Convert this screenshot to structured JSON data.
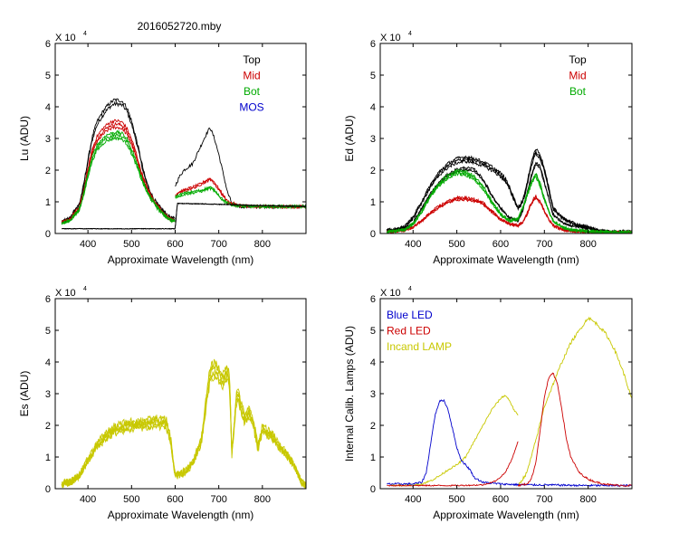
{
  "title": "2016052720.mby",
  "chart_data": [
    {
      "type": "line",
      "id": "lu",
      "ylabel": "Lu (ADU)",
      "xlabel": "Approximate Wavelength (nm)",
      "exponent_label": "X 10",
      "exponent_sup": "4",
      "xlim": [
        325,
        900
      ],
      "ylim": [
        0,
        6
      ],
      "xticks": [
        400,
        500,
        600,
        700,
        800
      ],
      "yticks": [
        0,
        1,
        2,
        3,
        4,
        5,
        6
      ],
      "legend_position": "top-right",
      "legend": [
        {
          "label": "Top",
          "color": "#000000"
        },
        {
          "label": "Mid",
          "color": "#cc0000"
        },
        {
          "label": "Bot",
          "color": "#00aa00"
        },
        {
          "label": "MOS",
          "color": "#0000cc"
        }
      ],
      "series": [
        {
          "name": "Top",
          "color": "#000000",
          "noise": 0.06,
          "copies": 2,
          "x": [
            340,
            360,
            370,
            380,
            390,
            400,
            410,
            420,
            430,
            440,
            450,
            460,
            470,
            480,
            490,
            500,
            510,
            520,
            530,
            540,
            550,
            560,
            570,
            580,
            590,
            600
          ],
          "y": [
            0.35,
            0.5,
            0.75,
            0.9,
            1.5,
            2.3,
            3.0,
            3.45,
            3.7,
            3.9,
            4.05,
            4.15,
            4.15,
            4.1,
            3.9,
            3.5,
            3.0,
            2.4,
            1.8,
            1.4,
            1.1,
            0.9,
            0.75,
            0.6,
            0.5,
            0.45
          ]
        },
        {
          "name": "Top (red region)",
          "color": "#000000",
          "noise": 0.05,
          "copies": 1,
          "x": [
            600,
            610,
            620,
            630,
            640,
            650,
            660,
            670,
            680,
            690,
            700,
            710,
            720,
            730,
            740,
            750,
            800,
            850,
            900
          ],
          "y": [
            1.5,
            1.8,
            2.0,
            2.1,
            2.2,
            2.5,
            2.8,
            3.1,
            3.35,
            3.0,
            2.5,
            1.9,
            1.3,
            0.95,
            0.88,
            0.85,
            0.85,
            0.85,
            0.85
          ]
        },
        {
          "name": "Mid",
          "color": "#cc0000",
          "noise": 0.05,
          "copies": 3,
          "x": [
            340,
            360,
            370,
            380,
            390,
            400,
            410,
            420,
            430,
            440,
            450,
            460,
            470,
            480,
            490,
            500,
            510,
            520,
            530,
            540,
            550,
            560,
            570,
            580,
            590,
            600
          ],
          "y": [
            0.33,
            0.45,
            0.65,
            0.8,
            1.3,
            2.0,
            2.6,
            2.95,
            3.15,
            3.3,
            3.4,
            3.45,
            3.45,
            3.4,
            3.2,
            2.9,
            2.5,
            2.0,
            1.6,
            1.3,
            1.05,
            0.85,
            0.7,
            0.55,
            0.45,
            0.4
          ]
        },
        {
          "name": "Mid (red region)",
          "color": "#cc0000",
          "noise": 0.04,
          "copies": 2,
          "x": [
            600,
            610,
            620,
            640,
            660,
            670,
            680,
            690,
            700,
            710,
            720,
            740,
            760,
            800,
            850,
            900
          ],
          "y": [
            1.2,
            1.3,
            1.35,
            1.45,
            1.55,
            1.65,
            1.72,
            1.6,
            1.4,
            1.2,
            1.0,
            0.9,
            0.87,
            0.85,
            0.85,
            0.85
          ]
        },
        {
          "name": "Bot",
          "color": "#00aa00",
          "noise": 0.05,
          "copies": 3,
          "x": [
            340,
            360,
            370,
            380,
            390,
            400,
            410,
            420,
            430,
            440,
            450,
            460,
            470,
            480,
            490,
            500,
            510,
            520,
            530,
            540,
            550,
            560,
            570,
            580,
            590,
            600
          ],
          "y": [
            0.32,
            0.42,
            0.6,
            0.75,
            1.2,
            1.85,
            2.35,
            2.7,
            2.85,
            3.0,
            3.05,
            3.1,
            3.1,
            3.05,
            2.9,
            2.6,
            2.25,
            1.85,
            1.5,
            1.2,
            1.0,
            0.8,
            0.65,
            0.52,
            0.43,
            0.38
          ]
        },
        {
          "name": "Bot (red region)",
          "color": "#00aa00",
          "noise": 0.04,
          "copies": 2,
          "x": [
            600,
            610,
            620,
            640,
            660,
            670,
            680,
            690,
            700,
            710,
            720,
            740,
            760,
            800,
            850,
            900
          ],
          "y": [
            1.15,
            1.2,
            1.25,
            1.3,
            1.35,
            1.4,
            1.45,
            1.35,
            1.2,
            1.05,
            0.95,
            0.88,
            0.86,
            0.85,
            0.85,
            0.85
          ]
        },
        {
          "name": "Baseline",
          "color": "#000000",
          "noise": 0.01,
          "copies": 2,
          "x": [
            340,
            600,
            605,
            700,
            800,
            900
          ],
          "y": [
            0.15,
            0.15,
            0.95,
            0.92,
            0.88,
            0.85
          ]
        }
      ]
    },
    {
      "type": "line",
      "id": "ed",
      "ylabel": "Ed  (ADU)",
      "xlabel": "Approximate Wavelength (nm)",
      "exponent_label": "X 10",
      "exponent_sup": "4",
      "xlim": [
        325,
        900
      ],
      "ylim": [
        0,
        6
      ],
      "xticks": [
        400,
        500,
        600,
        700,
        800
      ],
      "yticks": [
        0,
        1,
        2,
        3,
        4,
        5,
        6
      ],
      "legend_position": "top-right",
      "legend": [
        {
          "label": "Top",
          "color": "#000000"
        },
        {
          "label": "Mid",
          "color": "#cc0000"
        },
        {
          "label": "Bot",
          "color": "#00aa00"
        }
      ],
      "series": [
        {
          "name": "Top",
          "color": "#000000",
          "noise": 0.05,
          "copies": 3,
          "x": [
            340,
            360,
            380,
            400,
            420,
            440,
            460,
            480,
            500,
            520,
            540,
            560,
            580,
            600,
            610,
            620,
            630,
            640,
            650,
            660,
            670,
            680,
            690,
            700,
            710,
            720,
            740,
            760,
            780,
            800,
            820,
            850,
            900
          ],
          "y": [
            0.1,
            0.12,
            0.2,
            0.5,
            1.0,
            1.5,
            1.9,
            2.15,
            2.3,
            2.35,
            2.3,
            2.2,
            2.05,
            1.85,
            1.7,
            1.45,
            1.1,
            0.8,
            1.0,
            1.5,
            2.2,
            2.6,
            2.45,
            2.0,
            1.4,
            0.8,
            0.5,
            0.35,
            0.25,
            0.2,
            0.1,
            0.05,
            0.05
          ]
        },
        {
          "name": "Top (inner)",
          "color": "#000000",
          "noise": 0.04,
          "copies": 2,
          "x": [
            340,
            360,
            380,
            400,
            420,
            440,
            460,
            480,
            500,
            520,
            540,
            560,
            580,
            600,
            620,
            640,
            650,
            660,
            670,
            680,
            690,
            700,
            710,
            720,
            740,
            760,
            800,
            850,
            900
          ],
          "y": [
            0.08,
            0.1,
            0.15,
            0.35,
            0.8,
            1.25,
            1.6,
            1.85,
            2.0,
            2.05,
            2.0,
            1.7,
            1.2,
            0.8,
            0.5,
            0.4,
            0.7,
            1.2,
            1.8,
            2.2,
            2.1,
            1.6,
            1.1,
            0.6,
            0.35,
            0.25,
            0.15,
            0.05,
            0.05
          ]
        },
        {
          "name": "Mid",
          "color": "#cc0000",
          "noise": 0.04,
          "copies": 3,
          "x": [
            340,
            360,
            380,
            400,
            420,
            440,
            460,
            480,
            500,
            520,
            540,
            560,
            580,
            600,
            620,
            640,
            650,
            660,
            670,
            680,
            690,
            700,
            710,
            720,
            740,
            760,
            800,
            850,
            900
          ],
          "y": [
            0.05,
            0.07,
            0.1,
            0.2,
            0.4,
            0.65,
            0.85,
            1.0,
            1.1,
            1.1,
            1.05,
            0.95,
            0.7,
            0.45,
            0.3,
            0.25,
            0.35,
            0.6,
            0.95,
            1.15,
            1.0,
            0.7,
            0.45,
            0.25,
            0.12,
            0.08,
            0.05,
            0.03,
            0.03
          ]
        },
        {
          "name": "Bot",
          "color": "#00aa00",
          "noise": 0.05,
          "copies": 3,
          "x": [
            340,
            360,
            380,
            400,
            420,
            440,
            460,
            480,
            500,
            520,
            540,
            560,
            580,
            600,
            620,
            640,
            650,
            660,
            670,
            680,
            690,
            700,
            710,
            720,
            740,
            760,
            800,
            850,
            900
          ],
          "y": [
            0.06,
            0.08,
            0.12,
            0.3,
            0.7,
            1.2,
            1.55,
            1.8,
            1.95,
            1.9,
            1.75,
            1.45,
            1.0,
            0.6,
            0.4,
            0.45,
            0.8,
            1.2,
            1.6,
            1.85,
            1.55,
            1.1,
            0.7,
            0.4,
            0.2,
            0.12,
            0.07,
            0.04,
            0.04
          ]
        }
      ]
    },
    {
      "type": "line",
      "id": "es",
      "ylabel": "Es  (ADU)",
      "xlabel": "Approximate Wavelength (nm)",
      "exponent_label": "X 10",
      "exponent_sup": "4",
      "xlim": [
        325,
        900
      ],
      "ylim": [
        0,
        6
      ],
      "xticks": [
        400,
        500,
        600,
        700,
        800
      ],
      "yticks": [
        0,
        1,
        2,
        3,
        4,
        5,
        6
      ],
      "legend": [],
      "series": [
        {
          "name": "Es",
          "color": "#c8c800",
          "noise": 0.12,
          "copies": 5,
          "x": [
            340,
            360,
            380,
            400,
            420,
            440,
            460,
            480,
            500,
            520,
            540,
            560,
            580,
            590,
            600,
            610,
            620,
            640,
            660,
            670,
            680,
            690,
            700,
            710,
            720,
            725,
            730,
            740,
            745,
            750,
            760,
            770,
            780,
            790,
            800,
            820,
            840,
            860,
            870,
            880,
            890,
            900
          ],
          "y": [
            0.15,
            0.2,
            0.4,
            0.9,
            1.35,
            1.65,
            1.85,
            1.95,
            2.0,
            2.05,
            2.05,
            2.1,
            2.05,
            1.5,
            0.4,
            0.45,
            0.5,
            0.8,
            1.5,
            2.6,
            3.6,
            3.8,
            3.6,
            3.4,
            3.7,
            3.3,
            1.1,
            2.8,
            3.0,
            2.6,
            2.2,
            2.4,
            2.0,
            1.3,
            1.9,
            1.7,
            1.3,
            1.0,
            0.8,
            0.5,
            0.2,
            0.1
          ]
        }
      ]
    },
    {
      "type": "line",
      "id": "lamps",
      "ylabel": "Internal Calib. Lamps (ADU)",
      "xlabel": "Approximate Wavelength (nm)",
      "exponent_label": "X 10",
      "exponent_sup": "4",
      "xlim": [
        325,
        900
      ],
      "ylim": [
        0,
        6
      ],
      "xticks": [
        400,
        500,
        600,
        700,
        800
      ],
      "yticks": [
        0,
        1,
        2,
        3,
        4,
        5,
        6
      ],
      "legend_position": "top-left",
      "legend": [
        {
          "label": "Blue LED",
          "color": "#0000cc"
        },
        {
          "label": "Red LED",
          "color": "#cc0000"
        },
        {
          "label": "Incand LAMP",
          "color": "#c8c800"
        }
      ],
      "series": [
        {
          "name": "Incand LAMP (short)",
          "color": "#c8c800",
          "noise": 0.03,
          "copies": 1,
          "x": [
            350,
            400,
            420,
            440,
            460,
            480,
            500,
            520,
            540,
            560,
            580,
            600,
            610,
            620,
            630,
            640
          ],
          "y": [
            0.1,
            0.12,
            0.15,
            0.25,
            0.4,
            0.6,
            0.75,
            1.0,
            1.5,
            2.0,
            2.5,
            2.85,
            2.95,
            2.8,
            2.5,
            2.3
          ]
        },
        {
          "name": "Incand LAMP",
          "color": "#c8c800",
          "noise": 0.05,
          "copies": 1,
          "x": [
            640,
            660,
            680,
            700,
            720,
            740,
            760,
            780,
            800,
            820,
            840,
            860,
            880,
            900
          ],
          "y": [
            0.1,
            0.5,
            1.5,
            2.6,
            3.3,
            4.0,
            4.6,
            5.0,
            5.4,
            5.2,
            4.9,
            4.4,
            3.7,
            2.8
          ]
        },
        {
          "name": "Blue LED",
          "color": "#0000cc",
          "noise": 0.03,
          "copies": 1,
          "x": [
            340,
            400,
            420,
            430,
            440,
            450,
            460,
            470,
            480,
            490,
            500,
            510,
            520,
            530,
            540,
            560,
            600,
            650,
            700,
            800,
            900
          ],
          "y": [
            0.15,
            0.15,
            0.2,
            0.5,
            1.4,
            2.3,
            2.75,
            2.8,
            2.5,
            1.9,
            1.3,
            0.9,
            0.75,
            0.6,
            0.35,
            0.2,
            0.15,
            0.12,
            0.12,
            0.1,
            0.1
          ]
        },
        {
          "name": "Red LED (leading)",
          "color": "#cc0000",
          "noise": 0.02,
          "copies": 1,
          "x": [
            340,
            500,
            560,
            590,
            610,
            625,
            635,
            640
          ],
          "y": [
            0.1,
            0.1,
            0.12,
            0.25,
            0.5,
            0.9,
            1.3,
            1.5
          ]
        },
        {
          "name": "Red LED",
          "color": "#cc0000",
          "noise": 0.03,
          "copies": 1,
          "x": [
            640,
            660,
            670,
            680,
            690,
            700,
            710,
            720,
            730,
            740,
            750,
            760,
            780,
            800,
            820,
            850,
            880,
            900
          ],
          "y": [
            0.1,
            0.15,
            0.3,
            0.8,
            1.8,
            2.9,
            3.5,
            3.65,
            3.3,
            2.5,
            1.6,
            1.0,
            0.5,
            0.3,
            0.2,
            0.12,
            0.1,
            0.1
          ]
        }
      ]
    }
  ]
}
